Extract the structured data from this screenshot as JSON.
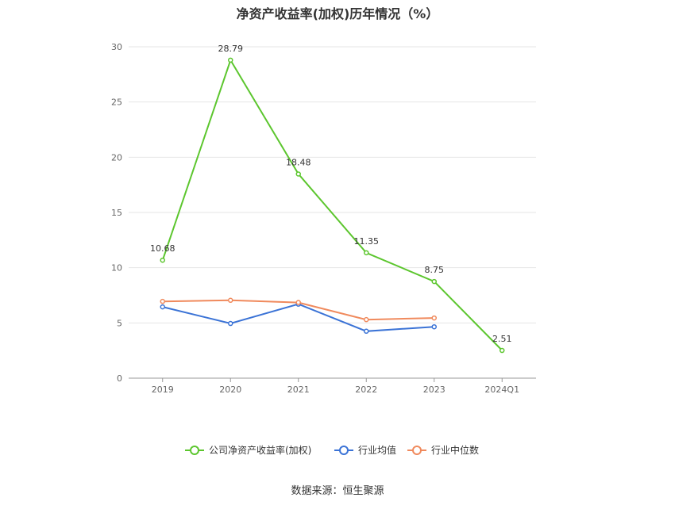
{
  "title": "净资产收益率(加权)历年情况（%）",
  "source": "数据来源：恒生聚源",
  "chart_data": {
    "type": "line",
    "categories": [
      "2019",
      "2020",
      "2021",
      "2022",
      "2023",
      "2024Q1"
    ],
    "ylim": [
      0,
      30
    ],
    "yticks": [
      0,
      5,
      10,
      15,
      20,
      25,
      30
    ],
    "grid": true,
    "legend_position": "bottom",
    "series": [
      {
        "name": "公司净资产收益率(加权)",
        "color": "#5cc62e",
        "values": [
          10.68,
          28.79,
          18.48,
          11.35,
          8.75,
          2.51
        ],
        "labels": [
          "10.68",
          "28.79",
          "18.48",
          "11.35",
          "8.75",
          "2.51"
        ]
      },
      {
        "name": "行业均值",
        "color": "#3b73d6",
        "values": [
          6.45,
          4.95,
          6.7,
          4.25,
          4.65,
          null
        ],
        "labels": []
      },
      {
        "name": "行业中位数",
        "color": "#f08a5d",
        "values": [
          6.95,
          7.05,
          6.85,
          5.3,
          5.45,
          null
        ],
        "labels": []
      }
    ]
  }
}
